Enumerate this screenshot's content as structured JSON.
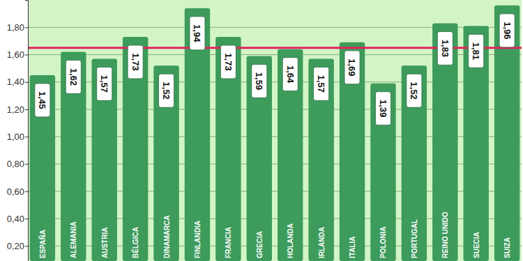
{
  "chart_data": {
    "type": "bar",
    "categories": [
      "ESPAÑA",
      "ALEMANIA",
      "AUSTRIA",
      "BÉLGICA",
      "DINAMARCA",
      "FINLANDIA",
      "FRANCIA",
      "GRECIA",
      "HOLANDA",
      "IRLANDA",
      "ITALIA",
      "POLONIA",
      "PORTUGAL",
      "REINO UNIDO",
      "SUECIA",
      "SUIZA"
    ],
    "values": [
      1.45,
      1.62,
      1.57,
      1.73,
      1.52,
      1.94,
      1.73,
      1.59,
      1.64,
      1.57,
      1.69,
      1.39,
      1.52,
      1.83,
      1.81,
      1.96
    ],
    "value_labels": [
      "1,45",
      "1,62",
      "1,57",
      "1,73",
      "1,52",
      "1,94",
      "1,73",
      "1,59",
      "1,64",
      "1,57",
      "1,69",
      "1,39",
      "1,52",
      "1,83",
      "1,81",
      "1,96"
    ],
    "color": "#3d9b5c",
    "reference_line": 1.65,
    "ylim": [
      0.09,
      2.0
    ],
    "yticks": [
      {
        "value": 0.2,
        "label": "0,20"
      },
      {
        "value": 0.4,
        "label": "0,40"
      },
      {
        "value": 0.6,
        "label": "0,60"
      },
      {
        "value": 0.8,
        "label": "0,80"
      },
      {
        "value": 1.0,
        "label": "1,00"
      },
      {
        "value": 1.2,
        "label": "1,20"
      },
      {
        "value": 1.4,
        "label": "1,40"
      },
      {
        "value": 1.6,
        "label": "1,60"
      },
      {
        "value": 1.8,
        "label": "1,80"
      }
    ],
    "grid": true,
    "data_labels": true
  }
}
